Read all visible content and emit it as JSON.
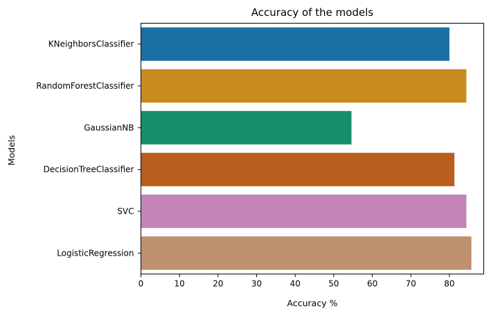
{
  "chart_data": {
    "type": "bar",
    "orientation": "horizontal",
    "title": "Accuracy of the models",
    "xlabel": "Accuracy %",
    "ylabel": "Models",
    "categories": [
      "KNeighborsClassifier",
      "RandomForestClassifier",
      "GaussianNB",
      "DecisionTreeClassifier",
      "SVC",
      "LogisticRegression"
    ],
    "values": [
      80.0,
      84.4,
      54.6,
      81.3,
      84.4,
      85.7
    ],
    "colors": [
      "#1a6fa3",
      "#c98b1f",
      "#158f6b",
      "#b95e1c",
      "#c285b6",
      "#bf9170"
    ],
    "xlim": [
      0,
      88.9
    ],
    "xticks": [
      0,
      10,
      20,
      30,
      40,
      50,
      60,
      70,
      80
    ],
    "grid": false
  }
}
